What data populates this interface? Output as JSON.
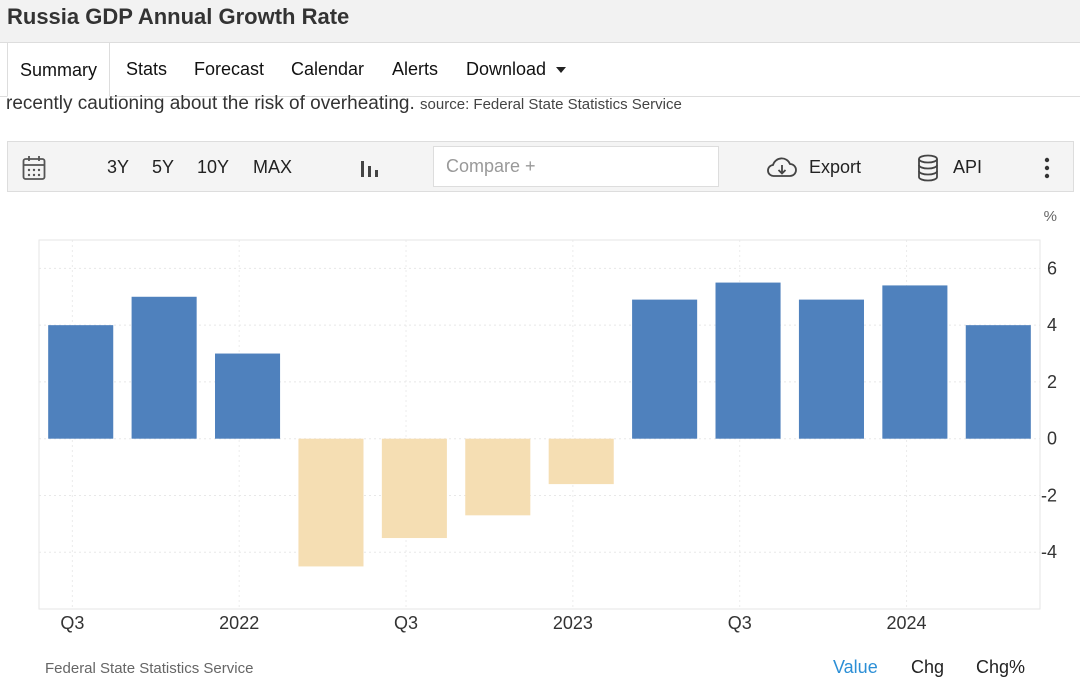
{
  "page_title": "Russia GDP Annual Growth Rate",
  "tabs": [
    {
      "label": "Summary"
    },
    {
      "label": "Stats"
    },
    {
      "label": "Forecast"
    },
    {
      "label": "Calendar"
    },
    {
      "label": "Alerts"
    },
    {
      "label": "Download"
    }
  ],
  "summary": {
    "text": "recently cautioning about the risk of overheating.",
    "source": "source: Federal State Statistics Service"
  },
  "toolbar": {
    "ranges": [
      "3Y",
      "5Y",
      "10Y",
      "MAX"
    ],
    "compare_placeholder": "Compare +",
    "export_label": "Export",
    "api_label": "API"
  },
  "chart_data": {
    "type": "bar",
    "unit_label": "%",
    "values": [
      4.0,
      5.0,
      3.0,
      -4.5,
      -3.5,
      -2.7,
      -1.6,
      4.9,
      5.5,
      4.9,
      5.4,
      4.0
    ],
    "colors": {
      "positive": "#4f81bd",
      "negative": "#f5deb3"
    },
    "x_tick_labels": [
      "Q3",
      "2022",
      "Q3",
      "2023",
      "Q3",
      "2024"
    ],
    "y_ticks": [
      "6",
      "4",
      "2",
      "0",
      "-2",
      "-4"
    ],
    "y_tick_values": [
      6,
      4,
      2,
      0,
      -2,
      -4
    ],
    "ylim": [
      -6,
      7
    ],
    "grid": true
  },
  "footer": {
    "source": "Federal State Statistics Service",
    "value_tabs": [
      "Value",
      "Chg",
      "Chg%"
    ]
  }
}
